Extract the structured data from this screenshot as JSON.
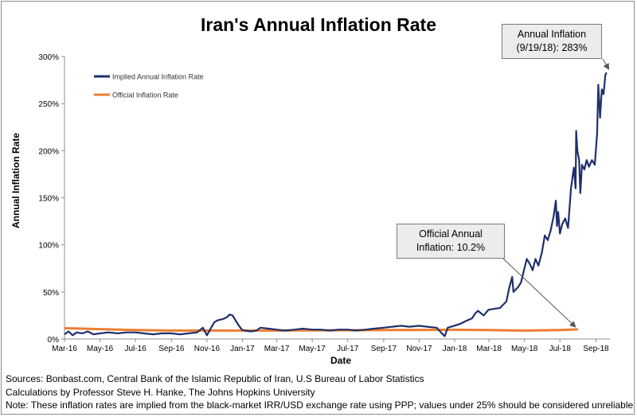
{
  "chart_data": {
    "type": "line",
    "title": "Iran's Annual Inflation Rate",
    "xlabel": "Date",
    "ylabel": "Annual Inflation Rate",
    "x_ticks": [
      "Mar-16",
      "May-16",
      "Jul-16",
      "Sep-16",
      "Nov-16",
      "Jan-17",
      "Mar-17",
      "May-17",
      "Jul-17",
      "Sep-17",
      "Nov-17",
      "Jan-18",
      "Mar-18",
      "May-18",
      "Jul-18",
      "Sep-18"
    ],
    "x_range": [
      "2016-03-01",
      "2018-09-25"
    ],
    "y_ticks": [
      "0%",
      "50%",
      "100%",
      "150%",
      "200%",
      "250%",
      "300%"
    ],
    "ylim": [
      0,
      300
    ],
    "grid": false,
    "legend_position": "top-left",
    "series": [
      {
        "name": "Implied Annual Inflation Rate",
        "color": "#1f2f6b",
        "points": [
          [
            "2016-03-01",
            5
          ],
          [
            "2016-03-08",
            8
          ],
          [
            "2016-03-15",
            4
          ],
          [
            "2016-03-22",
            7
          ],
          [
            "2016-04-01",
            6
          ],
          [
            "2016-04-10",
            8
          ],
          [
            "2016-04-20",
            5
          ],
          [
            "2016-05-01",
            6
          ],
          [
            "2016-05-15",
            7
          ],
          [
            "2016-06-01",
            6
          ],
          [
            "2016-06-15",
            7
          ],
          [
            "2016-07-01",
            7
          ],
          [
            "2016-07-15",
            6
          ],
          [
            "2016-08-01",
            5
          ],
          [
            "2016-08-15",
            6
          ],
          [
            "2016-09-01",
            6
          ],
          [
            "2016-09-15",
            5
          ],
          [
            "2016-10-01",
            6
          ],
          [
            "2016-10-15",
            7
          ],
          [
            "2016-10-25",
            12
          ],
          [
            "2016-11-01",
            4
          ],
          [
            "2016-11-10",
            14
          ],
          [
            "2016-11-14",
            18
          ],
          [
            "2016-11-20",
            20
          ],
          [
            "2016-11-28",
            21
          ],
          [
            "2016-12-05",
            23
          ],
          [
            "2016-12-10",
            26
          ],
          [
            "2016-12-15",
            25
          ],
          [
            "2016-12-20",
            20
          ],
          [
            "2016-12-25",
            15
          ],
          [
            "2016-12-31",
            10
          ],
          [
            "2017-01-05",
            9
          ],
          [
            "2017-01-15",
            8
          ],
          [
            "2017-01-25",
            9
          ],
          [
            "2017-02-01",
            12
          ],
          [
            "2017-02-15",
            11
          ],
          [
            "2017-03-01",
            10
          ],
          [
            "2017-03-15",
            9
          ],
          [
            "2017-04-01",
            10
          ],
          [
            "2017-04-15",
            11
          ],
          [
            "2017-05-01",
            10
          ],
          [
            "2017-05-15",
            10
          ],
          [
            "2017-06-01",
            9
          ],
          [
            "2017-06-15",
            10
          ],
          [
            "2017-07-01",
            10
          ],
          [
            "2017-07-15",
            9
          ],
          [
            "2017-08-01",
            10
          ],
          [
            "2017-08-15",
            11
          ],
          [
            "2017-09-01",
            12
          ],
          [
            "2017-09-15",
            13
          ],
          [
            "2017-10-01",
            14
          ],
          [
            "2017-10-15",
            13
          ],
          [
            "2017-11-01",
            14
          ],
          [
            "2017-11-15",
            13
          ],
          [
            "2017-12-01",
            12
          ],
          [
            "2017-12-10",
            6
          ],
          [
            "2017-12-15",
            3
          ],
          [
            "2017-12-20",
            12
          ],
          [
            "2017-12-31",
            14
          ],
          [
            "2018-01-10",
            16
          ],
          [
            "2018-01-20",
            19
          ],
          [
            "2018-01-31",
            22
          ],
          [
            "2018-02-05",
            27
          ],
          [
            "2018-02-10",
            30
          ],
          [
            "2018-02-20",
            25
          ],
          [
            "2018-02-28",
            31
          ],
          [
            "2018-03-10",
            32
          ],
          [
            "2018-03-20",
            33
          ],
          [
            "2018-03-31",
            40
          ],
          [
            "2018-04-05",
            55
          ],
          [
            "2018-04-10",
            66
          ],
          [
            "2018-04-12",
            50
          ],
          [
            "2018-04-20",
            55
          ],
          [
            "2018-04-25",
            60
          ],
          [
            "2018-05-01",
            75
          ],
          [
            "2018-05-05",
            85
          ],
          [
            "2018-05-10",
            80
          ],
          [
            "2018-05-15",
            73
          ],
          [
            "2018-05-20",
            85
          ],
          [
            "2018-05-25",
            78
          ],
          [
            "2018-05-31",
            92
          ],
          [
            "2018-06-05",
            110
          ],
          [
            "2018-06-10",
            105
          ],
          [
            "2018-06-15",
            115
          ],
          [
            "2018-06-20",
            130
          ],
          [
            "2018-06-24",
            147
          ],
          [
            "2018-06-26",
            120
          ],
          [
            "2018-06-28",
            135
          ],
          [
            "2018-07-01",
            112
          ],
          [
            "2018-07-05",
            122
          ],
          [
            "2018-07-10",
            128
          ],
          [
            "2018-07-15",
            118
          ],
          [
            "2018-07-20",
            160
          ],
          [
            "2018-07-25",
            182
          ],
          [
            "2018-07-28",
            160
          ],
          [
            "2018-07-29",
            221
          ],
          [
            "2018-07-31",
            200
          ],
          [
            "2018-08-03",
            190
          ],
          [
            "2018-08-05",
            155
          ],
          [
            "2018-08-08",
            185
          ],
          [
            "2018-08-12",
            180
          ],
          [
            "2018-08-16",
            190
          ],
          [
            "2018-08-20",
            183
          ],
          [
            "2018-08-25",
            190
          ],
          [
            "2018-08-30",
            185
          ],
          [
            "2018-09-03",
            218
          ],
          [
            "2018-09-05",
            270
          ],
          [
            "2018-09-08",
            235
          ],
          [
            "2018-09-11",
            265
          ],
          [
            "2018-09-14",
            260
          ],
          [
            "2018-09-17",
            280
          ],
          [
            "2018-09-19",
            283
          ]
        ]
      },
      {
        "name": "Official Inflation Rate",
        "color": "#ed7d31",
        "points": [
          [
            "2016-03-01",
            11.5
          ],
          [
            "2016-05-01",
            10.5
          ],
          [
            "2016-07-01",
            9.5
          ],
          [
            "2016-09-01",
            9.0
          ],
          [
            "2016-11-01",
            9.0
          ],
          [
            "2017-01-01",
            9.0
          ],
          [
            "2017-03-01",
            9.0
          ],
          [
            "2017-05-01",
            9.2
          ],
          [
            "2017-07-01",
            9.3
          ],
          [
            "2017-09-01",
            9.5
          ],
          [
            "2017-11-01",
            9.6
          ],
          [
            "2018-01-01",
            9.8
          ],
          [
            "2018-03-01",
            9.5
          ],
          [
            "2018-05-01",
            9.0
          ],
          [
            "2018-07-01",
            9.5
          ],
          [
            "2018-08-01",
            10.2
          ]
        ]
      }
    ]
  },
  "annotations": {
    "annual": {
      "line1": "Annual Inflation",
      "line2": "(9/19/18): 283%"
    },
    "official": {
      "line1": "Official Annual",
      "line2": "Inflation: 10.2%"
    }
  },
  "notes": {
    "sources": "Sources: Bonbast.com, Central Bank of the Islamic Republic of Iran, U.S Bureau of Labor Statistics",
    "calculations": "Calculations by Professor Steve H. Hanke, The Johns Hopkins University",
    "note": "Note: These inflation rates are implied from the black-market IRR/USD exchange rate using PPP; values under 25% should be considered unreliable"
  }
}
